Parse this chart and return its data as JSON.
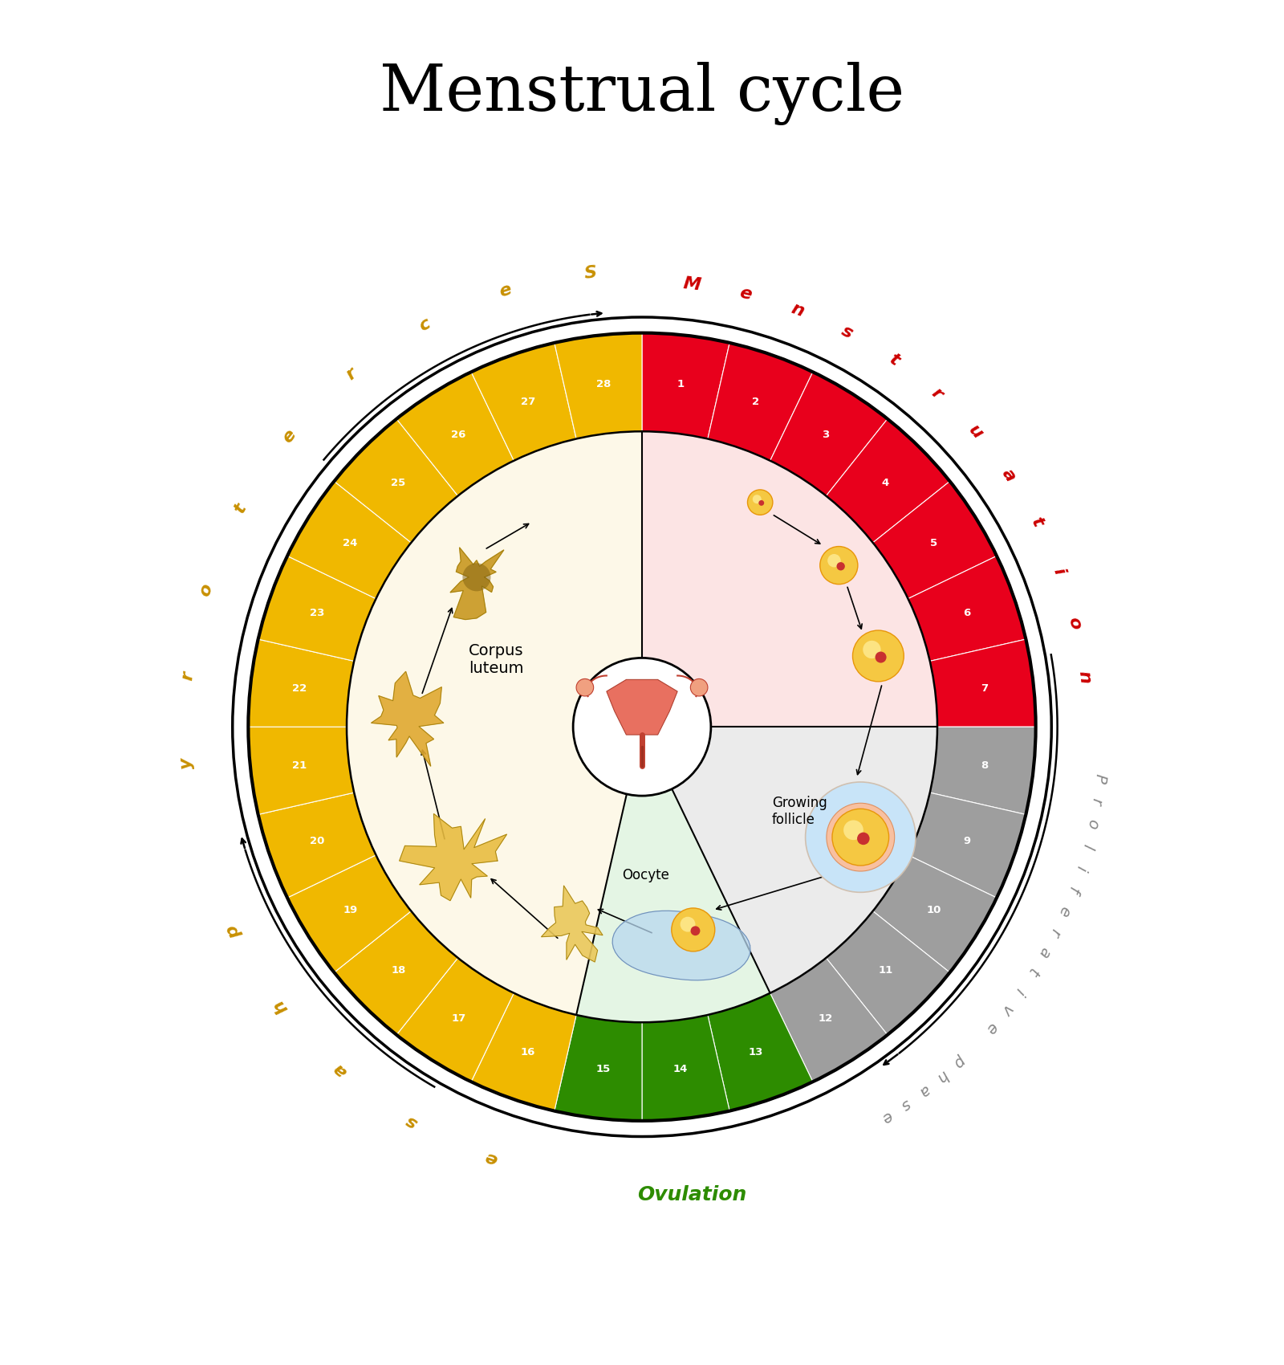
{
  "title": "Menstrual cycle",
  "title_fontsize": 58,
  "outer_r": 1.0,
  "inner_r": 0.75,
  "phase_colors": {
    "menstruation": "#e8001c",
    "proliferative": "#9e9e9e",
    "ovulation": "#2d8c00",
    "secretory": "#f0b800"
  },
  "phase_bg_colors": {
    "menstruation": "#fce4e4",
    "proliferative": "#ebebeb",
    "ovulation": "#e4f5e4",
    "secretory": "#fdf8e8"
  },
  "menstruation_days": [
    1,
    2,
    3,
    4,
    5,
    6,
    7
  ],
  "proliferative_days": [
    8,
    9,
    10,
    11,
    12
  ],
  "ovulation_days": [
    13,
    14,
    15
  ],
  "secretory_days": [
    16,
    17,
    18,
    19,
    20,
    21,
    22,
    23,
    24,
    25,
    26,
    27,
    28
  ],
  "phase_label_colors": {
    "menstruation": "#cc0000",
    "proliferative": "#888888",
    "ovulation": "#2d8c00",
    "secretory": "#c89000"
  },
  "background_color": "#ffffff",
  "follicle_colors": {
    "yellow": "#f5c842",
    "orange": "#e8960a",
    "red_dot": "#c83030"
  }
}
